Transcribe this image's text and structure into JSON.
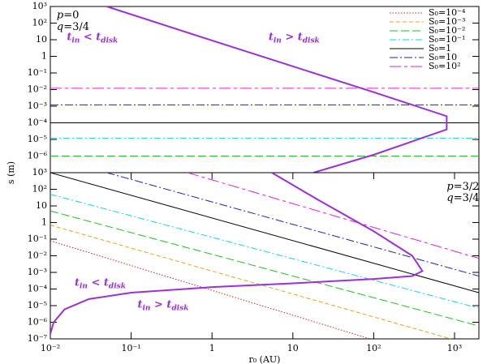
{
  "chart_data": [
    {
      "type": "line",
      "ylabel": "s (m)",
      "xscale": "log",
      "yscale": "log",
      "grid": false,
      "legend": "upper right",
      "xlim": [
        0.01,
        2000
      ],
      "ylim": [
        1e-07,
        1000
      ],
      "yticks": [
        {
          "value": 1e-06,
          "label": "10⁻⁶"
        },
        {
          "value": 1e-05,
          "label": "10⁻⁵"
        },
        {
          "value": 0.0001,
          "label": "10⁻⁴"
        },
        {
          "value": 0.001,
          "label": "10⁻³"
        },
        {
          "value": 0.01,
          "label": "10⁻²"
        },
        {
          "value": 0.1,
          "label": "10⁻¹"
        },
        1,
        10,
        {
          "value": 100,
          "label": "10²"
        },
        {
          "value": 1000,
          "label": "10³"
        }
      ],
      "annotations": [
        {
          "parts": [
            "p",
            "=0"
          ],
          "x": 0.012,
          "y": 300
        },
        {
          "parts": [
            "q",
            "=3/4"
          ],
          "x": 0.012,
          "y": 60
        },
        {
          "parts": [
            "t",
            "in",
            " < ",
            "t",
            "disk"
          ],
          "x": 0.016,
          "y": 15,
          "color": "#9b30d9"
        },
        {
          "parts": [
            "t",
            "in",
            " > ",
            "t",
            "disk"
          ],
          "x": 5,
          "y": 15,
          "color": "#9b30d9"
        }
      ],
      "series": [
        {
          "name": "S₀=10⁻⁴",
          "color": "#e0201c",
          "dash": "1.5,2",
          "x": [
            0.01,
            2000
          ],
          "values": [
            1e-07,
            1e-07
          ]
        },
        {
          "name": "S₀=10⁻³",
          "color": "#f0a020",
          "dash": "5,3",
          "x": [
            0.01,
            2000
          ],
          "values": [
            1e-07,
            1e-07
          ]
        },
        {
          "name": "S₀=10⁻²",
          "color": "#20c020",
          "dash": "10,4",
          "x": [
            0.01,
            2000
          ],
          "values": [
            1e-06,
            1e-06
          ]
        },
        {
          "name": "S₀=10⁻¹",
          "color": "#10d8e0",
          "dash": "8,3,2,3",
          "x": [
            0.01,
            2000
          ],
          "values": [
            1.2e-05,
            1.2e-05
          ]
        },
        {
          "name": "S₀=1",
          "color": "#000000",
          "dash": "",
          "x": [
            0.01,
            2000
          ],
          "values": [
            0.0001,
            0.0001
          ]
        },
        {
          "name": "S₀=10",
          "color": "#2020c0",
          "dash": "10,3,2,3",
          "x": [
            0.01,
            2000
          ],
          "values": [
            0.0012,
            0.0012
          ]
        },
        {
          "name": "S₀=10²",
          "color": "#e020e0",
          "dash": "14,4,4,4",
          "x": [
            0.01,
            2000
          ],
          "values": [
            0.012,
            0.012
          ]
        },
        {
          "color": "#9b30d9",
          "width": 2,
          "x": [
            0.05,
            1,
            10,
            100,
            800,
            800,
            100,
            18
          ],
          "values": [
            1000,
            9,
            0.25,
            0.007,
            0.00025,
            4e-05,
            1.2e-06,
            1e-07
          ]
        }
      ]
    },
    {
      "type": "line",
      "xlabel": "r₀ (AU)",
      "xscale": "log",
      "yscale": "log",
      "grid": false,
      "xlim": [
        0.01,
        2000
      ],
      "ylim": [
        1e-07,
        1000
      ],
      "xticks": [
        {
          "value": 0.01,
          "label": "10⁻²"
        },
        {
          "value": 0.1,
          "label": "10⁻¹"
        },
        1,
        10,
        {
          "value": 100,
          "label": "10²"
        },
        {
          "value": 1000,
          "label": "10³"
        }
      ],
      "yticks": [
        {
          "value": 1e-07,
          "label": "10⁻⁷"
        },
        {
          "value": 1e-06,
          "label": "10⁻⁶"
        },
        {
          "value": 1e-05,
          "label": "10⁻⁵"
        },
        {
          "value": 0.0001,
          "label": "10⁻⁴"
        },
        {
          "value": 0.001,
          "label": "10⁻³"
        },
        {
          "value": 0.01,
          "label": "10⁻²"
        },
        {
          "value": 0.1,
          "label": "10⁻¹"
        },
        1,
        10,
        {
          "value": 100,
          "label": "10²"
        },
        {
          "value": 1000,
          "label": "10³"
        }
      ],
      "annotations": [
        {
          "parts": [
            "p",
            "=3/2"
          ],
          "x": 800,
          "y": 150
        },
        {
          "parts": [
            "q",
            "=3/4"
          ],
          "x": 800,
          "y": 30
        },
        {
          "parts": [
            "t",
            "in",
            " < ",
            "t",
            "disk"
          ],
          "x": 0.02,
          "y": 0.00025,
          "color": "#9b30d9"
        },
        {
          "parts": [
            "t",
            "in",
            " > ",
            "t",
            "disk"
          ],
          "x": 0.12,
          "y": 1.2e-05,
          "color": "#9b30d9"
        }
      ],
      "series": [
        {
          "color": "#e0201c",
          "dash": "1.5,2",
          "x": [
            0.01,
            90
          ],
          "values": [
            0.08,
            1e-07
          ]
        },
        {
          "color": "#f0a020",
          "dash": "5,3",
          "x": [
            0.01,
            900
          ],
          "values": [
            0.7,
            1e-07
          ]
        },
        {
          "color": "#20c020",
          "dash": "10,4",
          "x": [
            0.01,
            2000
          ],
          "values": [
            5,
            6e-07
          ]
        },
        {
          "color": "#10d8e0",
          "dash": "8,3,2,3",
          "x": [
            0.01,
            2000
          ],
          "values": [
            50,
            7e-06
          ]
        },
        {
          "color": "#000000",
          "dash": "",
          "x": [
            0.01,
            2000
          ],
          "values": [
            1000,
            6e-05
          ]
        },
        {
          "color": "#2020c0",
          "dash": "10,3,2,3",
          "x": [
            0.05,
            2000
          ],
          "values": [
            1000,
            0.0006
          ]
        },
        {
          "color": "#e020e0",
          "dash": "14,4,4,4",
          "x": [
            0.5,
            2000
          ],
          "values": [
            1000,
            0.007
          ]
        },
        {
          "color": "#9b30d9",
          "width": 2,
          "x": [
            5.5,
            20,
            100,
            300,
            400,
            300,
            100,
            10,
            1,
            0.1,
            0.03,
            0.015,
            0.011,
            0.01
          ],
          "values": [
            1000,
            25,
            0.3,
            0.01,
            0.0012,
            0.0006,
            0.0004,
            0.00022,
            0.00013,
            6e-05,
            2.5e-05,
            6e-06,
            1e-06,
            2e-07
          ]
        }
      ]
    }
  ]
}
